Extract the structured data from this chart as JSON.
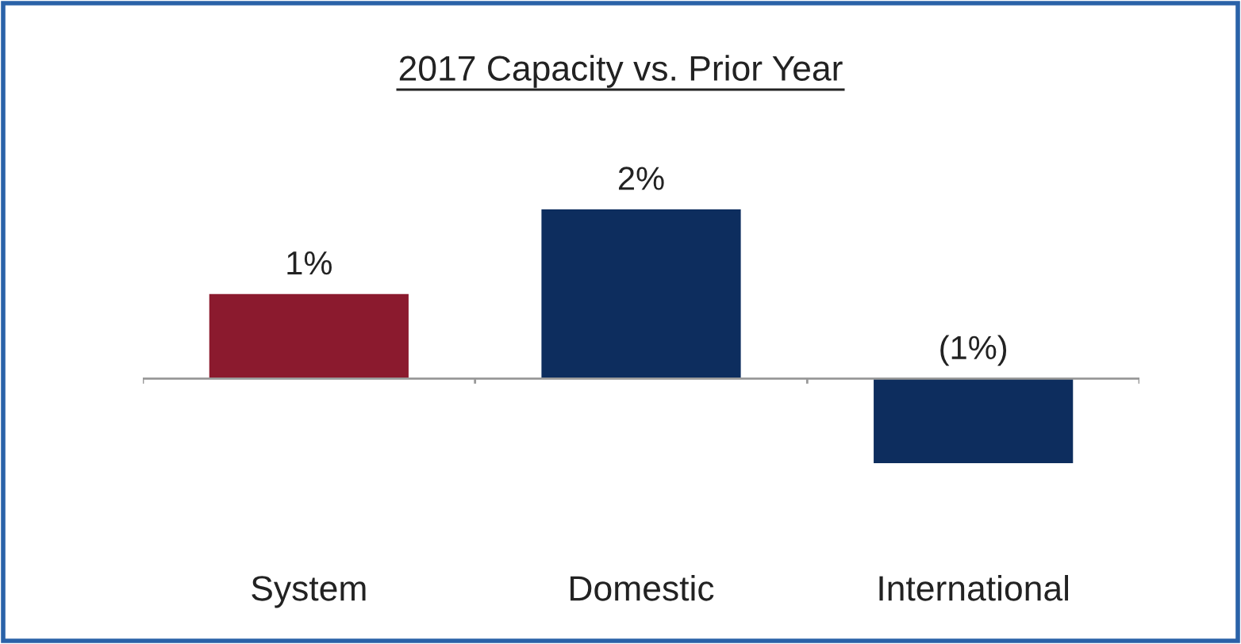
{
  "chart_data": {
    "type": "bar",
    "title": "2017 Capacity vs. Prior Year",
    "categories": [
      "System",
      "Domestic",
      "International"
    ],
    "values": [
      1,
      2,
      -1
    ],
    "colors": [
      "#8b1a2e",
      "#0d2d5e",
      "#0d2d5e"
    ],
    "value_labels": [
      "1%",
      "2%",
      "(1%)"
    ],
    "grid": false,
    "legend": false
  }
}
